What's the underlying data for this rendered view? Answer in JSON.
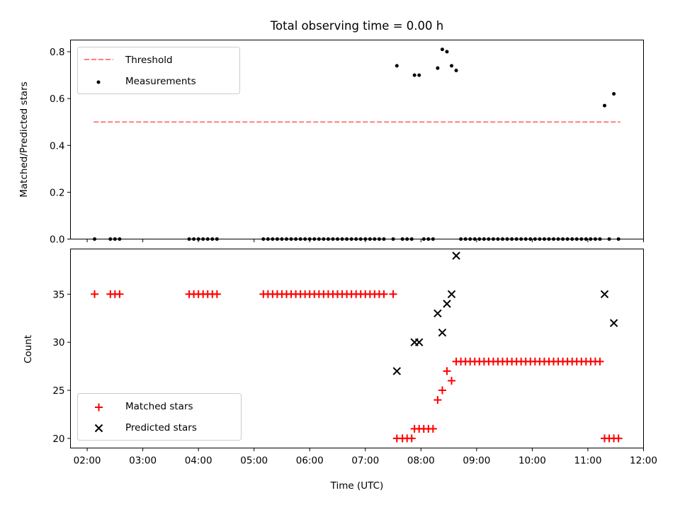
{
  "chart_data": {
    "type": "scatter",
    "title": "Total observing time = 0.00 h",
    "xlabel": "Time (UTC)",
    "x_unit": "hours UTC",
    "xlim": [
      "01:42",
      "12:00"
    ],
    "xticks": [
      "02:00",
      "03:00",
      "04:00",
      "05:00",
      "06:00",
      "07:00",
      "08:00",
      "09:00",
      "10:00",
      "11:00",
      "12:00"
    ],
    "panels": [
      {
        "ylabel": "Matched/Predicted stars",
        "ylim": [
          0,
          0.85
        ],
        "yticks": [
          "0.0",
          "0.2",
          "0.4",
          "0.6",
          "0.8"
        ],
        "legend_position": "upper-left",
        "series": [
          {
            "name": "Threshold",
            "kind": "dashed-line",
            "color": "#ff7f7f",
            "x": [
              "02:07",
              "11:35"
            ],
            "y": [
              0.5,
              0.5
            ]
          },
          {
            "name": "Measurements",
            "kind": "dot",
            "color": "#000000",
            "points": [
              [
                "02:08",
                0
              ],
              [
                "02:25",
                0
              ],
              [
                "02:30",
                0
              ],
              [
                "02:35",
                0
              ],
              [
                "03:50",
                0
              ],
              [
                "03:55",
                0
              ],
              [
                "04:00",
                0
              ],
              [
                "04:05",
                0
              ],
              [
                "04:10",
                0
              ],
              [
                "04:15",
                0
              ],
              [
                "04:20",
                0
              ],
              [
                "05:10",
                0
              ],
              [
                "05:15",
                0
              ],
              [
                "05:20",
                0
              ],
              [
                "05:25",
                0
              ],
              [
                "05:30",
                0
              ],
              [
                "05:35",
                0
              ],
              [
                "05:40",
                0
              ],
              [
                "05:45",
                0
              ],
              [
                "05:50",
                0
              ],
              [
                "05:55",
                0
              ],
              [
                "06:00",
                0
              ],
              [
                "06:05",
                0
              ],
              [
                "06:10",
                0
              ],
              [
                "06:15",
                0
              ],
              [
                "06:20",
                0
              ],
              [
                "06:25",
                0
              ],
              [
                "06:30",
                0
              ],
              [
                "06:35",
                0
              ],
              [
                "06:40",
                0
              ],
              [
                "06:45",
                0
              ],
              [
                "06:50",
                0
              ],
              [
                "06:55",
                0
              ],
              [
                "07:00",
                0
              ],
              [
                "07:05",
                0
              ],
              [
                "07:10",
                0
              ],
              [
                "07:15",
                0
              ],
              [
                "07:20",
                0
              ],
              [
                "07:30",
                0
              ],
              [
                "07:34",
                0.74
              ],
              [
                "07:40",
                0
              ],
              [
                "07:45",
                0
              ],
              [
                "07:50",
                0
              ],
              [
                "07:53",
                0.7
              ],
              [
                "07:58",
                0.7
              ],
              [
                "08:03",
                0
              ],
              [
                "08:08",
                0
              ],
              [
                "08:13",
                0
              ],
              [
                "08:18",
                0.73
              ],
              [
                "08:23",
                0.81
              ],
              [
                "08:28",
                0.8
              ],
              [
                "08:33",
                0.74
              ],
              [
                "08:38",
                0.72
              ],
              [
                "08:43",
                0
              ],
              [
                "08:48",
                0
              ],
              [
                "08:53",
                0
              ],
              [
                "08:58",
                0
              ],
              [
                "09:03",
                0
              ],
              [
                "09:08",
                0
              ],
              [
                "09:13",
                0
              ],
              [
                "09:18",
                0
              ],
              [
                "09:23",
                0
              ],
              [
                "09:28",
                0
              ],
              [
                "09:33",
                0
              ],
              [
                "09:38",
                0
              ],
              [
                "09:43",
                0
              ],
              [
                "09:48",
                0
              ],
              [
                "09:53",
                0
              ],
              [
                "09:58",
                0
              ],
              [
                "10:03",
                0
              ],
              [
                "10:08",
                0
              ],
              [
                "10:13",
                0
              ],
              [
                "10:18",
                0
              ],
              [
                "10:23",
                0
              ],
              [
                "10:28",
                0
              ],
              [
                "10:33",
                0
              ],
              [
                "10:38",
                0
              ],
              [
                "10:43",
                0
              ],
              [
                "10:48",
                0
              ],
              [
                "10:53",
                0
              ],
              [
                "10:58",
                0
              ],
              [
                "11:03",
                0
              ],
              [
                "11:08",
                0
              ],
              [
                "11:13",
                0
              ],
              [
                "11:18",
                0.57
              ],
              [
                "11:23",
                0
              ],
              [
                "11:28",
                0.62
              ],
              [
                "11:33",
                0
              ]
            ]
          }
        ]
      },
      {
        "ylabel": "Count",
        "ylim": [
          19,
          39.7
        ],
        "yticks": [
          "20",
          "25",
          "30",
          "35"
        ],
        "legend_position": "lower-left",
        "series": [
          {
            "name": "Matched stars",
            "kind": "plus",
            "color": "#ff0000",
            "points": [
              [
                "02:08",
                35
              ],
              [
                "02:25",
                35
              ],
              [
                "02:30",
                35
              ],
              [
                "02:35",
                35
              ],
              [
                "03:50",
                35
              ],
              [
                "03:55",
                35
              ],
              [
                "04:00",
                35
              ],
              [
                "04:05",
                35
              ],
              [
                "04:10",
                35
              ],
              [
                "04:15",
                35
              ],
              [
                "04:20",
                35
              ],
              [
                "05:10",
                35
              ],
              [
                "05:15",
                35
              ],
              [
                "05:20",
                35
              ],
              [
                "05:25",
                35
              ],
              [
                "05:30",
                35
              ],
              [
                "05:35",
                35
              ],
              [
                "05:40",
                35
              ],
              [
                "05:45",
                35
              ],
              [
                "05:50",
                35
              ],
              [
                "05:55",
                35
              ],
              [
                "06:00",
                35
              ],
              [
                "06:05",
                35
              ],
              [
                "06:10",
                35
              ],
              [
                "06:15",
                35
              ],
              [
                "06:20",
                35
              ],
              [
                "06:25",
                35
              ],
              [
                "06:30",
                35
              ],
              [
                "06:35",
                35
              ],
              [
                "06:40",
                35
              ],
              [
                "06:45",
                35
              ],
              [
                "06:50",
                35
              ],
              [
                "06:55",
                35
              ],
              [
                "07:00",
                35
              ],
              [
                "07:05",
                35
              ],
              [
                "07:10",
                35
              ],
              [
                "07:15",
                35
              ],
              [
                "07:20",
                35
              ],
              [
                "07:30",
                35
              ],
              [
                "07:34",
                20
              ],
              [
                "07:40",
                20
              ],
              [
                "07:45",
                20
              ],
              [
                "07:50",
                20
              ],
              [
                "07:53",
                21
              ],
              [
                "07:58",
                21
              ],
              [
                "08:03",
                21
              ],
              [
                "08:08",
                21
              ],
              [
                "08:13",
                21
              ],
              [
                "08:18",
                24
              ],
              [
                "08:23",
                25
              ],
              [
                "08:28",
                27
              ],
              [
                "08:33",
                26
              ],
              [
                "08:38",
                28
              ],
              [
                "08:43",
                28
              ],
              [
                "08:48",
                28
              ],
              [
                "08:53",
                28
              ],
              [
                "08:58",
                28
              ],
              [
                "09:03",
                28
              ],
              [
                "09:08",
                28
              ],
              [
                "09:13",
                28
              ],
              [
                "09:18",
                28
              ],
              [
                "09:23",
                28
              ],
              [
                "09:28",
                28
              ],
              [
                "09:33",
                28
              ],
              [
                "09:38",
                28
              ],
              [
                "09:43",
                28
              ],
              [
                "09:48",
                28
              ],
              [
                "09:53",
                28
              ],
              [
                "09:58",
                28
              ],
              [
                "10:03",
                28
              ],
              [
                "10:08",
                28
              ],
              [
                "10:13",
                28
              ],
              [
                "10:18",
                28
              ],
              [
                "10:23",
                28
              ],
              [
                "10:28",
                28
              ],
              [
                "10:33",
                28
              ],
              [
                "10:38",
                28
              ],
              [
                "10:43",
                28
              ],
              [
                "10:48",
                28
              ],
              [
                "10:53",
                28
              ],
              [
                "10:58",
                28
              ],
              [
                "11:03",
                28
              ],
              [
                "11:08",
                28
              ],
              [
                "11:13",
                28
              ],
              [
                "11:18",
                20
              ],
              [
                "11:23",
                20
              ],
              [
                "11:28",
                20
              ],
              [
                "11:33",
                20
              ]
            ]
          },
          {
            "name": "Predicted stars",
            "kind": "x",
            "color": "#000000",
            "points": [
              [
                "07:34",
                27
              ],
              [
                "07:53",
                30
              ],
              [
                "07:58",
                30
              ],
              [
                "08:18",
                33
              ],
              [
                "08:23",
                31
              ],
              [
                "08:28",
                34
              ],
              [
                "08:33",
                35
              ],
              [
                "08:38",
                39
              ],
              [
                "11:18",
                35
              ],
              [
                "11:28",
                32
              ]
            ]
          }
        ]
      }
    ]
  }
}
